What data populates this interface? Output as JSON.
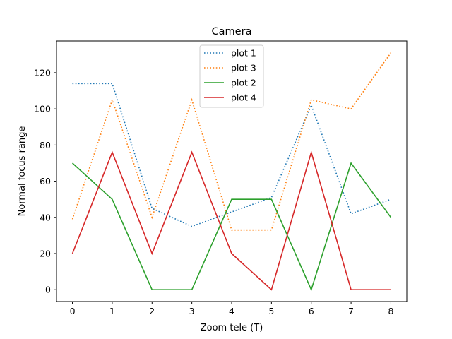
{
  "chart_data": {
    "type": "line",
    "title": "Camera",
    "xlabel": "Zoom tele (T)",
    "ylabel": "Normal focus range",
    "x": [
      0,
      1,
      2,
      3,
      4,
      5,
      6,
      7,
      8
    ],
    "xlim": [
      -0.4,
      8.4
    ],
    "ylim": [
      -6.55,
      137.55
    ],
    "xticks": [
      "0",
      "1",
      "2",
      "3",
      "4",
      "5",
      "6",
      "7",
      "8"
    ],
    "yticks": [
      "0",
      "20",
      "40",
      "60",
      "80",
      "100",
      "120"
    ],
    "grid": false,
    "legend_position": "top-center",
    "series": [
      {
        "name": "plot 1",
        "values": [
          114,
          114,
          45,
          35,
          43,
          51,
          102,
          42,
          50
        ],
        "color": "#1f77b4",
        "style": "dotted"
      },
      {
        "name": "plot 3",
        "values": [
          39,
          105,
          40,
          105,
          33,
          33,
          105,
          100,
          131
        ],
        "color": "#ff7f0e",
        "style": "dotted"
      },
      {
        "name": "plot 2",
        "values": [
          70,
          50,
          0,
          0,
          50,
          50,
          0,
          70,
          40
        ],
        "color": "#2ca02c",
        "style": "solid"
      },
      {
        "name": "plot 4",
        "values": [
          20,
          76,
          20,
          76,
          20,
          0,
          76,
          0,
          0
        ],
        "color": "#d62728",
        "style": "solid"
      }
    ]
  }
}
